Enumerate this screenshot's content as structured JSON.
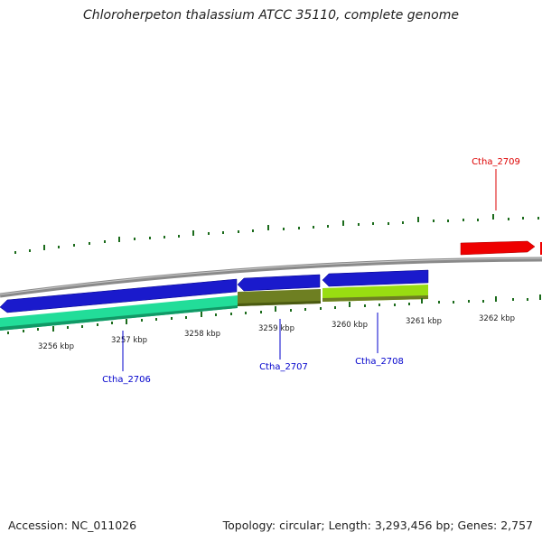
{
  "title": "Chloroherpeton thalassium ATCC 35110, complete genome",
  "footer": {
    "accession": "Accession: NC_011026",
    "topology": "Topology: circular; Length: 3,293,456 bp; Genes: 2,757"
  },
  "ticks": [
    {
      "label": "3256 kbp"
    },
    {
      "label": "3257 kbp"
    },
    {
      "label": "3258 kbp"
    },
    {
      "label": "3259 kbp"
    },
    {
      "label": "3260 kbp"
    },
    {
      "label": "3261 kbp"
    },
    {
      "label": "3262 kbp"
    }
  ],
  "genes": [
    {
      "label": "Ctha_2706",
      "color": "#0000cc"
    },
    {
      "label": "Ctha_2707",
      "color": "#0000cc"
    },
    {
      "label": "Ctha_2708",
      "color": "#0000cc"
    },
    {
      "label": "Ctha_2709",
      "color": "#dd0000"
    }
  ],
  "colors": {
    "backbone": "#8a8a8a",
    "cds_reverse": "#1a1acc",
    "cds_forward": "#ee0000",
    "feature_teal": "#22dd99",
    "feature_olive": "#6e7f22",
    "feature_lime": "#99dd11",
    "tick": "#1b6b1b"
  }
}
